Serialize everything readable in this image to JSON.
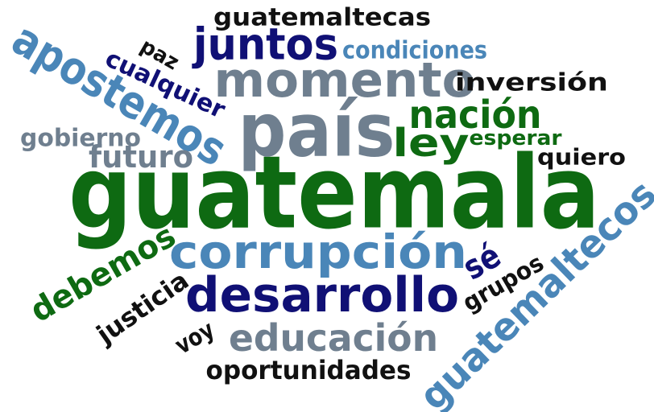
{
  "words": [
    "guatemala",
    "país",
    "momento",
    "juntos",
    "guatemaltecas",
    "condiciones",
    "apostemos",
    "paz",
    "cualquier",
    "inversión",
    "nación",
    "ley",
    "esperar",
    "quiero",
    "gobierno",
    "futuro",
    "corrupción",
    "sé",
    "grupos",
    "guatemaltecos",
    "debemos",
    "justicia",
    "desarrollo",
    "voy",
    "educación",
    "oportunidades"
  ]
}
